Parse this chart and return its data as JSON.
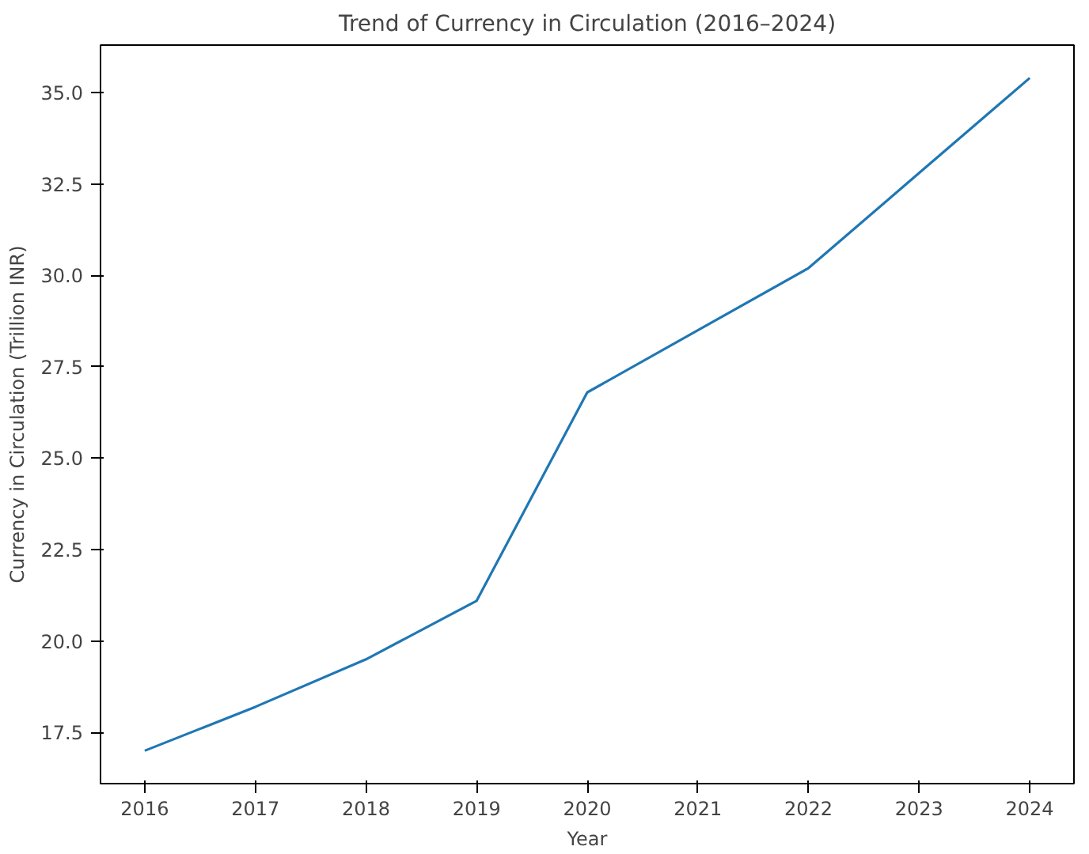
{
  "chart_data": {
    "type": "line",
    "title": "Trend of Currency in Circulation (2016–2024)",
    "xlabel": "Year",
    "ylabel": "Currency in Circulation (Trillion INR)",
    "x": [
      2016,
      2017,
      2018,
      2019,
      2020,
      2021,
      2022,
      2023,
      2024
    ],
    "series": [
      {
        "color": "#1f77b4",
        "values": [
          17.0,
          18.2,
          19.5,
          21.1,
          26.8,
          28.5,
          30.2,
          32.8,
          35.4
        ]
      }
    ],
    "xlim": [
      2015.6,
      2024.4
    ],
    "ylim": [
      16.1,
      36.3
    ],
    "xticks": [
      2016,
      2017,
      2018,
      2019,
      2020,
      2021,
      2022,
      2023,
      2024
    ],
    "yticks": [
      {
        "value": 17.5,
        "label": "17.5"
      },
      {
        "value": 20,
        "label": "20.0"
      },
      {
        "value": 22.5,
        "label": "22.5"
      },
      {
        "value": 25,
        "label": "25.0"
      },
      {
        "value": 27.5,
        "label": "27.5"
      },
      {
        "value": 30,
        "label": "30.0"
      },
      {
        "value": 32.5,
        "label": "32.5"
      },
      {
        "value": 35,
        "label": "35.0"
      }
    ],
    "grid": false
  }
}
